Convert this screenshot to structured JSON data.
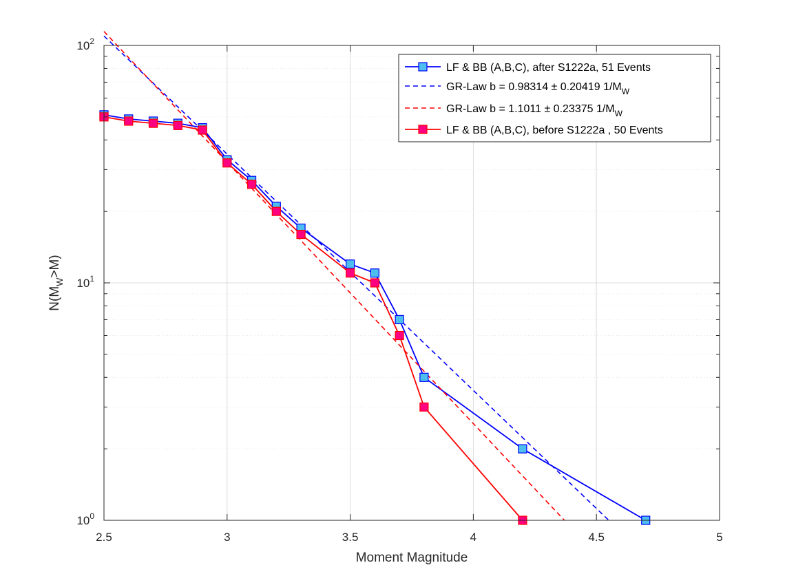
{
  "chart_data": {
    "type": "line",
    "xlabel": "Moment Magnitude",
    "ylabel": {
      "pre": "N(M",
      "sub": "W",
      "post": ">M)"
    },
    "xlim": [
      2.5,
      5
    ],
    "ylim": [
      1,
      100
    ],
    "yscale": "log",
    "grid": true,
    "legend_position": "top-right",
    "x_ticks": [
      {
        "value": 2.5,
        "label": "2.5"
      },
      {
        "value": 3,
        "label": "3"
      },
      {
        "value": 3.5,
        "label": "3.5"
      },
      {
        "value": 4,
        "label": "4"
      },
      {
        "value": 4.5,
        "label": "4.5"
      },
      {
        "value": 5,
        "label": "5"
      }
    ],
    "y_ticks": [
      {
        "value": 1,
        "base": "10",
        "exp": "0"
      },
      {
        "value": 10,
        "base": "10",
        "exp": "1"
      },
      {
        "value": 100,
        "base": "10",
        "exp": "2"
      }
    ],
    "series": [
      {
        "name": "LF & BB (A,B,C), after S1222a, 51 Events",
        "kind": "markers-line",
        "color": "#0000ff",
        "marker_fill": "#4dbeee",
        "x": [
          2.5,
          2.6,
          2.7,
          2.8,
          2.9,
          3.0,
          3.1,
          3.2,
          3.3,
          3.5,
          3.6,
          3.7,
          3.8,
          4.2,
          4.7
        ],
        "y": [
          51,
          49,
          48,
          47,
          45,
          33,
          27,
          21,
          17,
          12,
          11,
          7,
          4,
          2,
          1
        ]
      },
      {
        "name": "GR-Law b = 0.98314 ± 0.20419 1/M",
        "name_sub": "W",
        "kind": "dashed-line",
        "color": "#0000ff",
        "x": [
          2.5,
          4.55
        ],
        "y": [
          109.6,
          1.0
        ]
      },
      {
        "name": "GR-Law b = 1.1011 ± 0.23375 1/M",
        "name_sub": "W",
        "kind": "dashed-line",
        "color": "#ff0000",
        "x": [
          2.5,
          4.37
        ],
        "y": [
          114.5,
          1.0
        ]
      },
      {
        "name": "LF & BB (A,B,C), before S1222a , 50 Events",
        "kind": "markers-line",
        "color": "#ff0000",
        "marker_fill": "#ff0080",
        "x": [
          2.5,
          2.6,
          2.7,
          2.8,
          2.9,
          3.0,
          3.1,
          3.2,
          3.3,
          3.5,
          3.6,
          3.7,
          3.8,
          4.2
        ],
        "y": [
          50,
          48,
          47,
          46,
          44,
          32,
          26,
          20,
          16,
          11,
          10,
          6,
          3,
          1
        ]
      }
    ]
  }
}
